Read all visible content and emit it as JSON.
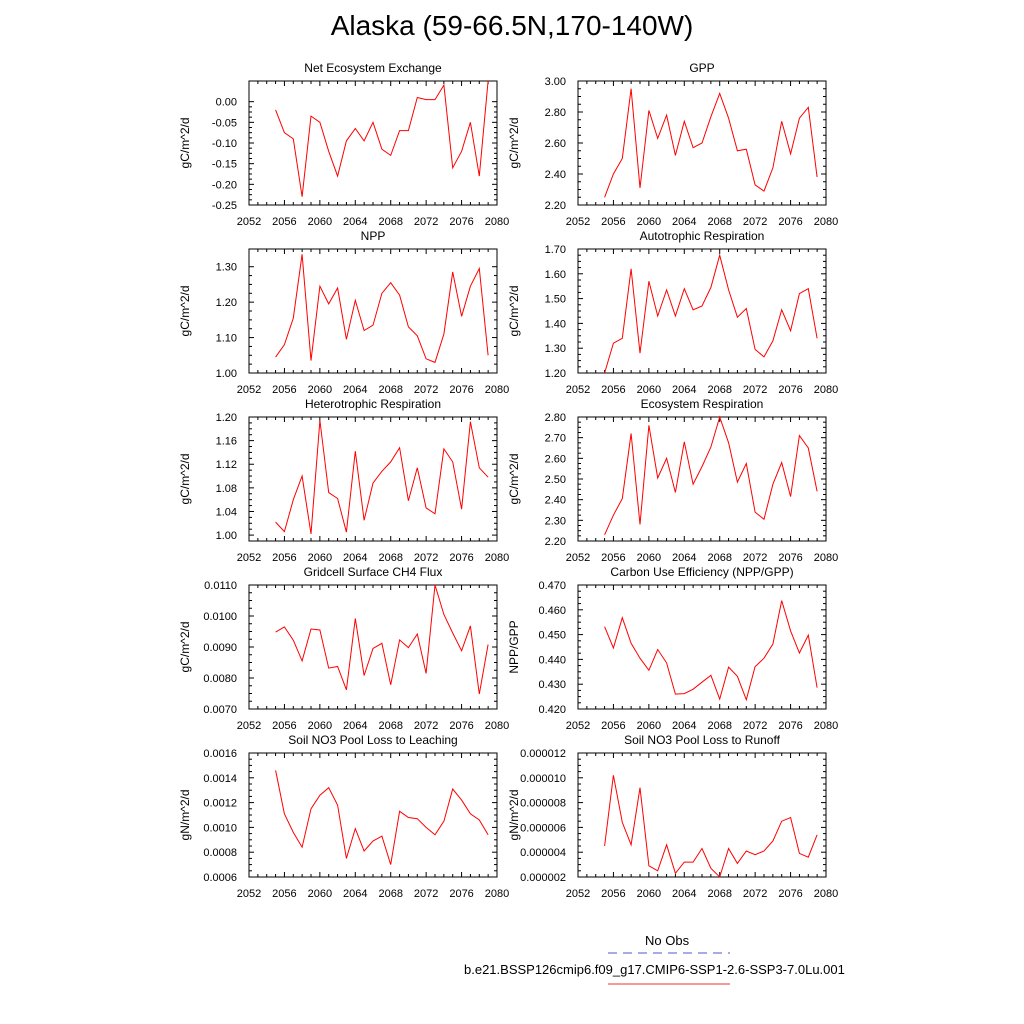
{
  "title": "Alaska (59-66.5N,170-140W)",
  "legend": {
    "items": [
      {
        "label": "No Obs",
        "color": "#5555cc",
        "dash": true
      },
      {
        "label": "b.e21.BSSP126cmip6.f09_g17.CMIP6-SSP1-2.6-SSP3-7.0Lu.001",
        "color": "#ee3333",
        "dash": false
      }
    ]
  },
  "chart_data": [
    {
      "type": "line",
      "title": "Net Ecosystem Exchange",
      "ylabel": "gC/m^2/d",
      "xlabel": "",
      "xlim": [
        2052,
        2080
      ],
      "xticks": [
        "2052",
        "2056",
        "2060",
        "2064",
        "2068",
        "2072",
        "2076",
        "2080"
      ],
      "ylim": [
        -0.25,
        0.05
      ],
      "yticks": [
        "-0.25",
        "-0.20",
        "-0.15",
        "-0.10",
        "-0.05",
        "0.00"
      ],
      "series": [
        {
          "color": "#ff0000",
          "x": [
            2055,
            2056,
            2057,
            2058,
            2059,
            2060,
            2061,
            2062,
            2063,
            2064,
            2065,
            2066,
            2067,
            2068,
            2069,
            2070,
            2071,
            2072,
            2073,
            2074,
            2075,
            2076,
            2077,
            2078,
            2079
          ],
          "y": [
            -0.02,
            -0.075,
            -0.09,
            -0.23,
            -0.035,
            -0.05,
            -0.12,
            -0.18,
            -0.095,
            -0.065,
            -0.095,
            -0.05,
            -0.115,
            -0.13,
            -0.07,
            -0.07,
            0.01,
            0.005,
            0.005,
            0.04,
            -0.16,
            -0.12,
            -0.05,
            -0.18,
            0.05
          ]
        }
      ]
    },
    {
      "type": "line",
      "title": "GPP",
      "ylabel": "gC/m^2/d",
      "xlabel": "",
      "xlim": [
        2052,
        2080
      ],
      "xticks": [
        "2052",
        "2056",
        "2060",
        "2064",
        "2068",
        "2072",
        "2076",
        "2080"
      ],
      "ylim": [
        2.2,
        3.0
      ],
      "yticks": [
        "2.20",
        "2.40",
        "2.60",
        "2.80",
        "3.00"
      ],
      "series": [
        {
          "color": "#ff0000",
          "x": [
            2055,
            2056,
            2057,
            2058,
            2059,
            2060,
            2061,
            2062,
            2063,
            2064,
            2065,
            2066,
            2067,
            2068,
            2069,
            2070,
            2071,
            2072,
            2073,
            2074,
            2075,
            2076,
            2077,
            2078,
            2079
          ],
          "y": [
            2.25,
            2.4,
            2.5,
            2.95,
            2.31,
            2.81,
            2.63,
            2.78,
            2.52,
            2.74,
            2.57,
            2.6,
            2.77,
            2.92,
            2.76,
            2.55,
            2.56,
            2.33,
            2.29,
            2.44,
            2.74,
            2.53,
            2.76,
            2.83,
            2.38
          ]
        }
      ]
    },
    {
      "type": "line",
      "title": "NPP",
      "ylabel": "gC/m^2/d",
      "xlabel": "",
      "xlim": [
        2052,
        2080
      ],
      "xticks": [
        "2052",
        "2056",
        "2060",
        "2064",
        "2068",
        "2072",
        "2076",
        "2080"
      ],
      "ylim": [
        1.0,
        1.35
      ],
      "yticks": [
        "1.00",
        "1.10",
        "1.20",
        "1.30"
      ],
      "series": [
        {
          "color": "#ff0000",
          "x": [
            2055,
            2056,
            2057,
            2058,
            2059,
            2060,
            2061,
            2062,
            2063,
            2064,
            2065,
            2066,
            2067,
            2068,
            2069,
            2070,
            2071,
            2072,
            2073,
            2074,
            2075,
            2076,
            2077,
            2078,
            2079
          ],
          "y": [
            1.045,
            1.08,
            1.155,
            1.335,
            1.035,
            1.245,
            1.195,
            1.24,
            1.095,
            1.205,
            1.12,
            1.135,
            1.225,
            1.255,
            1.22,
            1.13,
            1.105,
            1.04,
            1.03,
            1.11,
            1.285,
            1.16,
            1.245,
            1.295,
            1.05
          ]
        }
      ]
    },
    {
      "type": "line",
      "title": "Autotrophic Respiration",
      "ylabel": "gC/m^2/d",
      "xlabel": "",
      "xlim": [
        2052,
        2080
      ],
      "xticks": [
        "2052",
        "2056",
        "2060",
        "2064",
        "2068",
        "2072",
        "2076",
        "2080"
      ],
      "ylim": [
        1.2,
        1.7
      ],
      "yticks": [
        "1.20",
        "1.30",
        "1.40",
        "1.50",
        "1.60",
        "1.70"
      ],
      "series": [
        {
          "color": "#ff0000",
          "x": [
            2055,
            2056,
            2057,
            2058,
            2059,
            2060,
            2061,
            2062,
            2063,
            2064,
            2065,
            2066,
            2067,
            2068,
            2069,
            2070,
            2071,
            2072,
            2073,
            2074,
            2075,
            2076,
            2077,
            2078,
            2079
          ],
          "y": [
            1.2,
            1.32,
            1.34,
            1.62,
            1.28,
            1.57,
            1.43,
            1.535,
            1.43,
            1.54,
            1.455,
            1.47,
            1.545,
            1.675,
            1.535,
            1.425,
            1.46,
            1.295,
            1.265,
            1.33,
            1.455,
            1.37,
            1.52,
            1.54,
            1.34
          ]
        }
      ]
    },
    {
      "type": "line",
      "title": "Heterotrophic Respiration",
      "ylabel": "gC/m^2/d",
      "xlabel": "",
      "xlim": [
        2052,
        2080
      ],
      "xticks": [
        "2052",
        "2056",
        "2060",
        "2064",
        "2068",
        "2072",
        "2076",
        "2080"
      ],
      "ylim": [
        0.99,
        1.2
      ],
      "yticks": [
        "1.00",
        "1.04",
        "1.08",
        "1.12",
        "1.16",
        "1.20"
      ],
      "series": [
        {
          "color": "#ff0000",
          "x": [
            2055,
            2056,
            2057,
            2058,
            2059,
            2060,
            2061,
            2062,
            2063,
            2064,
            2065,
            2066,
            2067,
            2068,
            2069,
            2070,
            2071,
            2072,
            2073,
            2074,
            2075,
            2076,
            2077,
            2078,
            2079
          ],
          "y": [
            1.022,
            1.006,
            1.06,
            1.1,
            1.002,
            1.194,
            1.072,
            1.062,
            1.005,
            1.142,
            1.025,
            1.088,
            1.108,
            1.124,
            1.148,
            1.058,
            1.114,
            1.046,
            1.036,
            1.146,
            1.124,
            1.044,
            1.192,
            1.114,
            1.098
          ]
        }
      ]
    },
    {
      "type": "line",
      "title": "Ecosystem Respiration",
      "ylabel": "gC/m^2/d",
      "xlabel": "",
      "xlim": [
        2052,
        2080
      ],
      "xticks": [
        "2052",
        "2056",
        "2060",
        "2064",
        "2068",
        "2072",
        "2076",
        "2080"
      ],
      "ylim": [
        2.2,
        2.8
      ],
      "yticks": [
        "2.20",
        "2.30",
        "2.40",
        "2.50",
        "2.60",
        "2.70",
        "2.80"
      ],
      "series": [
        {
          "color": "#ff0000",
          "x": [
            2055,
            2056,
            2057,
            2058,
            2059,
            2060,
            2061,
            2062,
            2063,
            2064,
            2065,
            2066,
            2067,
            2068,
            2069,
            2070,
            2071,
            2072,
            2073,
            2074,
            2075,
            2076,
            2077,
            2078,
            2079
          ],
          "y": [
            2.23,
            2.325,
            2.405,
            2.72,
            2.28,
            2.76,
            2.505,
            2.6,
            2.435,
            2.68,
            2.475,
            2.56,
            2.655,
            2.8,
            2.675,
            2.485,
            2.575,
            2.34,
            2.305,
            2.475,
            2.58,
            2.415,
            2.71,
            2.65,
            2.44
          ]
        }
      ]
    },
    {
      "type": "line",
      "title": "Gridcell Surface CH4 Flux",
      "ylabel": "gC/m^2/d",
      "xlabel": "",
      "xlim": [
        2052,
        2080
      ],
      "xticks": [
        "2052",
        "2056",
        "2060",
        "2064",
        "2068",
        "2072",
        "2076",
        "2080"
      ],
      "ylim": [
        0.007,
        0.011
      ],
      "yticks": [
        "0.0070",
        "0.0080",
        "0.0090",
        "0.0100",
        "0.0110"
      ],
      "series": [
        {
          "color": "#ff0000",
          "x": [
            2055,
            2056,
            2057,
            2058,
            2059,
            2060,
            2061,
            2062,
            2063,
            2064,
            2065,
            2066,
            2067,
            2068,
            2069,
            2070,
            2071,
            2072,
            2073,
            2074,
            2075,
            2076,
            2077,
            2078,
            2079
          ],
          "y": [
            0.00948,
            0.00965,
            0.00922,
            0.00855,
            0.00958,
            0.00955,
            0.00832,
            0.00837,
            0.00762,
            0.00992,
            0.00808,
            0.00895,
            0.00912,
            0.00778,
            0.00923,
            0.00898,
            0.00942,
            0.00815,
            0.011,
            0.01005,
            0.00945,
            0.00888,
            0.00968,
            0.00748,
            0.00908
          ]
        }
      ]
    },
    {
      "type": "line",
      "title": "Carbon Use Efficiency (NPP/GPP)",
      "ylabel": "NPP/GPP",
      "xlabel": "",
      "xlim": [
        2052,
        2080
      ],
      "xticks": [
        "2052",
        "2056",
        "2060",
        "2064",
        "2068",
        "2072",
        "2076",
        "2080"
      ],
      "ylim": [
        0.42,
        0.47
      ],
      "yticks": [
        "0.420",
        "0.430",
        "0.440",
        "0.450",
        "0.460",
        "0.470"
      ],
      "series": [
        {
          "color": "#ff0000",
          "x": [
            2055,
            2056,
            2057,
            2058,
            2059,
            2060,
            2061,
            2062,
            2063,
            2064,
            2065,
            2066,
            2067,
            2068,
            2069,
            2070,
            2071,
            2072,
            2073,
            2074,
            2075,
            2076,
            2077,
            2078,
            2079
          ],
          "y": [
            0.4532,
            0.4446,
            0.4568,
            0.4465,
            0.4405,
            0.4356,
            0.444,
            0.4386,
            0.426,
            0.4262,
            0.428,
            0.4308,
            0.4336,
            0.424,
            0.4369,
            0.4332,
            0.4237,
            0.4371,
            0.4405,
            0.4462,
            0.4637,
            0.4515,
            0.4426,
            0.4498,
            0.4286
          ]
        }
      ]
    },
    {
      "type": "line",
      "title": "Soil NO3 Pool Loss to Leaching",
      "ylabel": "gN/m^2/d",
      "xlabel": "",
      "xlim": [
        2052,
        2080
      ],
      "xticks": [
        "2052",
        "2056",
        "2060",
        "2064",
        "2068",
        "2072",
        "2076",
        "2080"
      ],
      "ylim": [
        0.0006,
        0.0016
      ],
      "yticks": [
        "0.0006",
        "0.0008",
        "0.0010",
        "0.0012",
        "0.0014",
        "0.0016"
      ],
      "series": [
        {
          "color": "#ff0000",
          "x": [
            2055,
            2056,
            2057,
            2058,
            2059,
            2060,
            2061,
            2062,
            2063,
            2064,
            2065,
            2066,
            2067,
            2068,
            2069,
            2070,
            2071,
            2072,
            2073,
            2074,
            2075,
            2076,
            2077,
            2078,
            2079
          ],
          "y": [
            0.00146,
            0.00111,
            0.00096,
            0.00084,
            0.00115,
            0.00126,
            0.00132,
            0.00118,
            0.00075,
            0.00099,
            0.00081,
            0.00089,
            0.00093,
            0.0007,
            0.00113,
            0.00108,
            0.00107,
            0.001,
            0.00094,
            0.00105,
            0.00131,
            0.00122,
            0.00111,
            0.00106,
            0.00094
          ]
        }
      ]
    },
    {
      "type": "line",
      "title": "Soil NO3 Pool Loss to Runoff",
      "ylabel": "gN/m^2/d",
      "xlabel": "",
      "xlim": [
        2052,
        2080
      ],
      "xticks": [
        "2052",
        "2056",
        "2060",
        "2064",
        "2068",
        "2072",
        "2076",
        "2080"
      ],
      "ylim": [
        2e-06,
        1.2e-05
      ],
      "yticks": [
        "0.000002",
        "0.000004",
        "0.000006",
        "0.000008",
        "0.000010",
        "0.000012"
      ],
      "series": [
        {
          "color": "#ff0000",
          "x": [
            2055,
            2056,
            2057,
            2058,
            2059,
            2060,
            2061,
            2062,
            2063,
            2064,
            2065,
            2066,
            2067,
            2068,
            2069,
            2070,
            2071,
            2072,
            2073,
            2074,
            2075,
            2076,
            2077,
            2078,
            2079
          ],
          "y": [
            4.5e-06,
            1.02e-05,
            6.4e-06,
            4.6e-06,
            9.2e-06,
            2.9e-06,
            2.5e-06,
            4.6e-06,
            2.3e-06,
            3.2e-06,
            3.2e-06,
            4.3e-06,
            2.7e-06,
            2e-06,
            4.3e-06,
            3.1e-06,
            4.1e-06,
            3.8e-06,
            4.1e-06,
            4.9e-06,
            6.5e-06,
            6.8e-06,
            3.9e-06,
            3.6e-06,
            5.4e-06
          ]
        }
      ]
    }
  ]
}
